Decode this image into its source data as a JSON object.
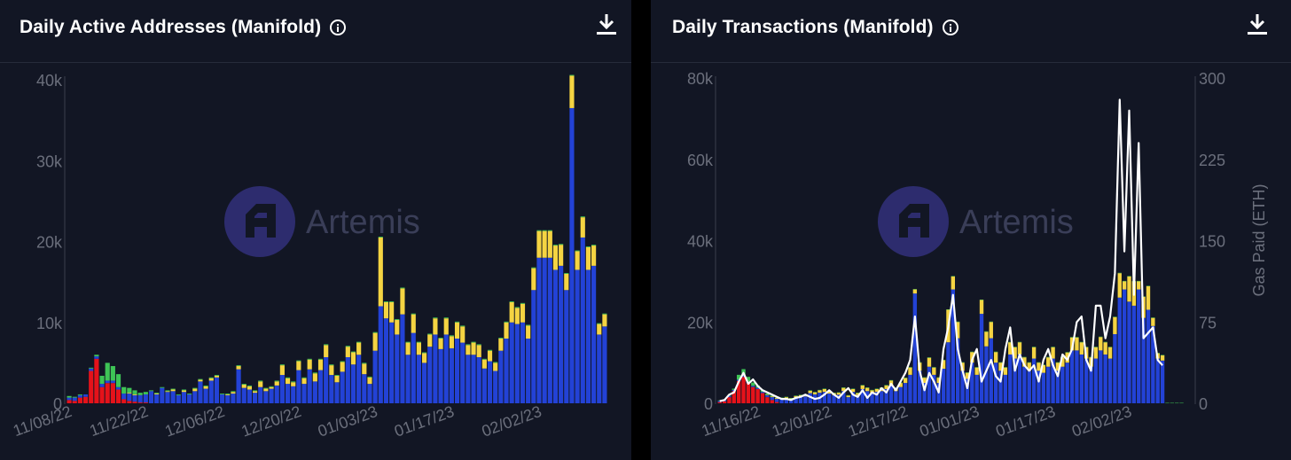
{
  "colors": {
    "background": "#121624",
    "blue": "#2342d6",
    "yellow": "#f5d442",
    "green": "#3ec456",
    "red": "#e5121a",
    "grey": "#8a8d98",
    "line": "#ffffff",
    "axis": "#6b6f7c"
  },
  "watermark": {
    "brand": "Artemis",
    "icon": "artemis-logo-icon"
  },
  "panels": {
    "left": {
      "title": "Daily Active Addresses (Manifold)",
      "info_icon": "info-icon",
      "download_icon": "download-icon"
    },
    "right": {
      "title": "Daily Transactions (Manifold)",
      "info_icon": "info-icon",
      "download_icon": "download-icon"
    }
  },
  "chart_data": [
    {
      "type": "bar",
      "stacked": true,
      "title": "Daily Active Addresses (Manifold)",
      "ylim": [
        0,
        40000
      ],
      "yticks": [
        "0",
        "10k",
        "20k",
        "30k",
        "40k"
      ],
      "yticks_values": [
        0,
        10000,
        20000,
        30000,
        40000
      ],
      "xtick_labels": [
        "11/08/22",
        "11/22/22",
        "12/06/22",
        "12/20/22",
        "01/03/23",
        "01/17/23",
        "02/02/23"
      ],
      "xtick_index": [
        0,
        14,
        28,
        42,
        56,
        70,
        86
      ],
      "grid": false,
      "legend": "none",
      "series_colors": [
        "#e5121a",
        "#2342d6",
        "#f5d442",
        "#3ec456"
      ],
      "series": [
        {
          "key": "red",
          "values": [
            400,
            300,
            700,
            800,
            4000,
            5500,
            2000,
            2500,
            2500,
            1700,
            500,
            300,
            200,
            100,
            100,
            0,
            0,
            0,
            0,
            0,
            0,
            0,
            0,
            0,
            0,
            0,
            0,
            0,
            0,
            0,
            0,
            0,
            0,
            0,
            0,
            0,
            0,
            0,
            0,
            0,
            0,
            0,
            0,
            0,
            0,
            0,
            0,
            0,
            0,
            0,
            0,
            0,
            0,
            0,
            0,
            0,
            0,
            0,
            0,
            0,
            0,
            0,
            0,
            0,
            0,
            0,
            0,
            0,
            0,
            0,
            0,
            0,
            0,
            0,
            0,
            0,
            0,
            0,
            0,
            0,
            0,
            0,
            0,
            0,
            0,
            0,
            0,
            0,
            0,
            0,
            0,
            0,
            0,
            0,
            0,
            0,
            0,
            0,
            0
          ]
        },
        {
          "key": "blue",
          "values": [
            300,
            400,
            300,
            300,
            300,
            300,
            400,
            300,
            300,
            300,
            700,
            900,
            800,
            900,
            1000,
            1500,
            1100,
            1900,
            1400,
            1500,
            1000,
            1400,
            1100,
            1500,
            2700,
            1800,
            2800,
            3200,
            1100,
            1000,
            1200,
            4200,
            1900,
            1700,
            1300,
            2000,
            1500,
            1800,
            2200,
            3500,
            2400,
            2100,
            4100,
            2400,
            4200,
            2700,
            4100,
            5700,
            3500,
            2600,
            3900,
            5700,
            4800,
            6000,
            3600,
            2400,
            6500,
            12000,
            10500,
            10000,
            8500,
            11000,
            6000,
            8700,
            6000,
            5000,
            7000,
            8500,
            6700,
            8500,
            6800,
            8000,
            7500,
            6000,
            6000,
            5700,
            4300,
            5200,
            4000,
            6500,
            8000,
            10000,
            9800,
            10000,
            8000,
            14000,
            18000,
            18000,
            18000,
            16500,
            17000,
            14000,
            36500,
            16500,
            20500,
            16500,
            17000,
            8500,
            9500
          ]
        },
        {
          "key": "yellow",
          "values": [
            0,
            0,
            0,
            0,
            0,
            0,
            0,
            0,
            0,
            0,
            0,
            100,
            100,
            0,
            0,
            0,
            100,
            0,
            100,
            200,
            0,
            200,
            0,
            300,
            200,
            300,
            300,
            200,
            0,
            100,
            200,
            400,
            400,
            400,
            200,
            700,
            300,
            200,
            500,
            1200,
            700,
            500,
            1100,
            700,
            1200,
            1000,
            1300,
            1500,
            1200,
            800,
            1200,
            1300,
            1500,
            1500,
            1300,
            800,
            2200,
            8500,
            2000,
            2500,
            1800,
            3200,
            1500,
            2300,
            1500,
            1200,
            1500,
            2000,
            1300,
            2000,
            1500,
            2000,
            2000,
            1200,
            1500,
            1500,
            1100,
            1300,
            1000,
            1500,
            2000,
            2500,
            2000,
            2300,
            1600,
            2700,
            3300,
            3300,
            3300,
            3000,
            2600,
            2000,
            4000,
            2300,
            2500,
            2800,
            2500,
            1300,
            1500
          ]
        },
        {
          "key": "green",
          "values": [
            200,
            100,
            100,
            0,
            100,
            200,
            1000,
            2200,
            1800,
            1600,
            800,
            600,
            500,
            300,
            300,
            100,
            100,
            100,
            100,
            100,
            100,
            100,
            100,
            100,
            100,
            100,
            100,
            100,
            100,
            100,
            100,
            100,
            100,
            100,
            100,
            100,
            100,
            100,
            100,
            100,
            100,
            100,
            100,
            100,
            100,
            100,
            100,
            100,
            100,
            100,
            100,
            100,
            100,
            100,
            100,
            100,
            100,
            100,
            100,
            100,
            100,
            100,
            100,
            100,
            100,
            100,
            100,
            100,
            100,
            100,
            100,
            100,
            100,
            100,
            100,
            100,
            100,
            100,
            100,
            100,
            100,
            100,
            100,
            100,
            100,
            100,
            100,
            100,
            100,
            100,
            100,
            100,
            100,
            100,
            100,
            100,
            100,
            100,
            100
          ]
        }
      ]
    },
    {
      "type": "bar",
      "stacked": true,
      "title": "Daily Transactions (Manifold)",
      "ylabel": "",
      "y2label": "Gas Paid (ETH)",
      "ylim": [
        0,
        80000
      ],
      "y2lim": [
        0,
        300
      ],
      "yticks": [
        "0",
        "20k",
        "40k",
        "60k",
        "80k"
      ],
      "yticks_values": [
        0,
        20000,
        40000,
        60000,
        80000
      ],
      "y2ticks": [
        "0",
        "75",
        "150",
        "225",
        "300"
      ],
      "y2ticks_values": [
        0,
        75,
        150,
        225,
        300
      ],
      "xtick_labels": [
        "11/16/22",
        "12/01/22",
        "12/17/22",
        "01/01/23",
        "01/17/23",
        "02/02/23"
      ],
      "xtick_index": [
        8,
        23,
        39,
        54,
        70,
        86
      ],
      "grid": false,
      "legend": "none",
      "series_colors": [
        "#e5121a",
        "#2342d6",
        "#f5d442",
        "#3ec456"
      ],
      "series": [
        {
          "key": "red",
          "values": [
            300,
            500,
            1500,
            3000,
            5500,
            6500,
            5000,
            4000,
            3500,
            2500,
            1500,
            800,
            300,
            0,
            0,
            0,
            0,
            0,
            0,
            0,
            0,
            0,
            0,
            0,
            0,
            0,
            0,
            0,
            0,
            0,
            0,
            0,
            0,
            0,
            0,
            0,
            0,
            0,
            0,
            0,
            0,
            0,
            0,
            0,
            0,
            0,
            0,
            0,
            0,
            0,
            0,
            0,
            0,
            0,
            0,
            0,
            0,
            0,
            0,
            0,
            0,
            0,
            0,
            0,
            0,
            0,
            0,
            0,
            0,
            0,
            0,
            0,
            0,
            0,
            0,
            0,
            0,
            0,
            0,
            0,
            0,
            0,
            0,
            0,
            0,
            0,
            0,
            0,
            0,
            0,
            0,
            0,
            0,
            0,
            0,
            0,
            0,
            0,
            0,
            0
          ]
        },
        {
          "key": "blue",
          "values": [
            300,
            300,
            300,
            300,
            300,
            300,
            300,
            300,
            300,
            300,
            500,
            700,
            800,
            1000,
            1200,
            1000,
            1400,
            1600,
            1700,
            2500,
            2200,
            2600,
            2800,
            2400,
            2000,
            2100,
            3000,
            1500,
            2800,
            2000,
            3500,
            3000,
            2500,
            2800,
            3000,
            3500,
            4500,
            3000,
            4000,
            5000,
            7000,
            27000,
            8000,
            5000,
            9000,
            7000,
            5000,
            8500,
            15000,
            28000,
            16000,
            8000,
            6000,
            10000,
            7000,
            22000,
            14000,
            16000,
            10000,
            8000,
            7000,
            12000,
            11000,
            12000,
            9000,
            8000,
            11000,
            8000,
            7500,
            9000,
            11000,
            8000,
            9000,
            10000,
            13000,
            13000,
            12000,
            11000,
            9000,
            11000,
            13000,
            12000,
            11000,
            17000,
            26000,
            28000,
            25000,
            24000,
            28000,
            21000,
            23000,
            19000,
            11000,
            10500
          ]
        },
        {
          "key": "yellow",
          "values": [
            0,
            0,
            0,
            0,
            0,
            0,
            0,
            0,
            0,
            0,
            100,
            200,
            200,
            300,
            300,
            200,
            400,
            400,
            400,
            600,
            500,
            600,
            700,
            600,
            500,
            500,
            800,
            400,
            700,
            500,
            900,
            800,
            700,
            700,
            800,
            900,
            1100,
            800,
            1000,
            1200,
            1800,
            1000,
            2000,
            1300,
            2200,
            1800,
            1300,
            2100,
            8000,
            3200,
            4000,
            2000,
            1500,
            2600,
            1800,
            3400,
            3600,
            4000,
            2600,
            2000,
            1800,
            3000,
            2800,
            3000,
            2300,
            2000,
            2800,
            2000,
            1900,
            2300,
            2800,
            2000,
            2300,
            2500,
            3200,
            3200,
            3000,
            2800,
            2300,
            2800,
            3300,
            3000,
            2800,
            4200,
            6000,
            2000,
            6200,
            6000,
            2000,
            5200,
            5800,
            2000,
            1300,
            1300
          ]
        },
        {
          "key": "green",
          "values": [
            100,
            100,
            100,
            300,
            1200,
            1600,
            1200,
            800,
            600,
            500,
            300,
            200,
            100,
            100,
            100,
            100,
            100,
            100,
            100,
            100,
            100,
            100,
            100,
            100,
            100,
            100,
            100,
            100,
            100,
            100,
            100,
            100,
            100,
            100,
            100,
            100,
            100,
            100,
            100,
            100,
            100,
            100,
            100,
            100,
            100,
            100,
            100,
            100,
            100,
            100,
            100,
            100,
            100,
            100,
            100,
            100,
            100,
            100,
            100,
            100,
            100,
            100,
            100,
            100,
            100,
            100,
            100,
            100,
            100,
            100,
            100,
            100,
            100,
            100,
            100,
            100,
            100,
            100,
            100,
            100,
            100,
            100,
            100,
            100,
            100,
            100,
            100,
            100,
            100,
            100,
            100,
            100,
            100,
            100,
            100,
            100,
            100,
            100
          ]
        }
      ],
      "line_series": {
        "key": "gas",
        "axis": "y2",
        "color": "#ffffff",
        "values": [
          2,
          3,
          8,
          10,
          20,
          28,
          18,
          22,
          16,
          12,
          10,
          8,
          6,
          4,
          4,
          3,
          5,
          6,
          8,
          6,
          4,
          5,
          8,
          12,
          8,
          5,
          10,
          14,
          8,
          6,
          12,
          5,
          10,
          8,
          14,
          10,
          18,
          12,
          20,
          28,
          40,
          80,
          30,
          12,
          28,
          20,
          10,
          50,
          70,
          100,
          50,
          30,
          14,
          40,
          50,
          20,
          30,
          40,
          25,
          20,
          50,
          70,
          30,
          45,
          35,
          30,
          35,
          20,
          40,
          50,
          35,
          25,
          45,
          40,
          50,
          75,
          80,
          40,
          30,
          90,
          90,
          60,
          80,
          120,
          280,
          140,
          270,
          100,
          240,
          60,
          65,
          70,
          40,
          35
        ]
      }
    }
  ]
}
